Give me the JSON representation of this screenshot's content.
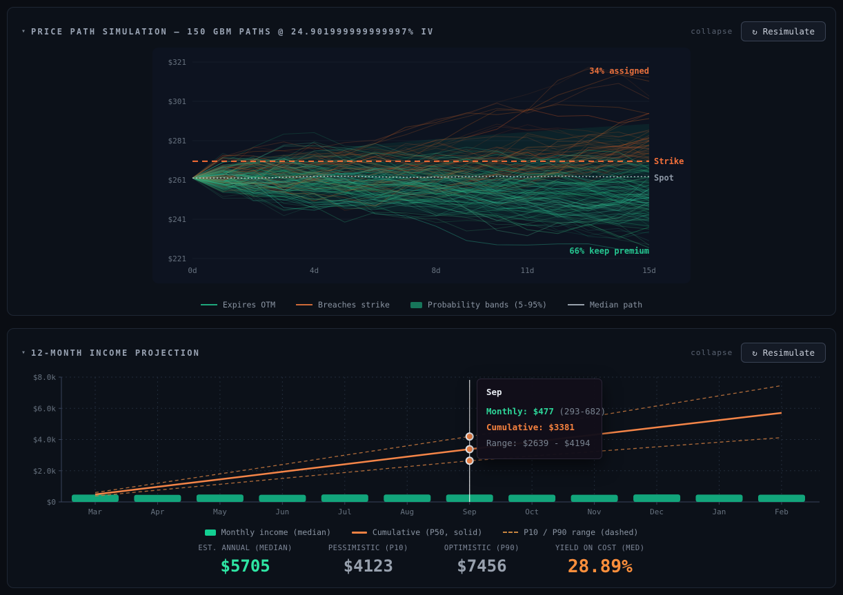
{
  "panels": {
    "simulation": {
      "caret": "▾",
      "title": "PRICE PATH SIMULATION — 150 GBM PATHS @ 24.901999999999997% IV",
      "collapse_label": "collapse",
      "resim_icon": "↻",
      "resimulate_label": "Resimulate"
    },
    "income": {
      "caret": "▾",
      "title": "12-MONTH INCOME PROJECTION",
      "collapse_label": "collapse",
      "resim_icon": "↻",
      "resimulate_label": "Resimulate"
    }
  },
  "legends": {
    "sim": [
      {
        "label": "Expires OTM"
      },
      {
        "label": "Breaches strike"
      },
      {
        "label": "Probability bands (5-95%)"
      },
      {
        "label": "Median path"
      }
    ],
    "income": [
      {
        "label": "Monthly income (median)"
      },
      {
        "label": "Cumulative (P50, solid)"
      },
      {
        "label": "P10 / P90 range (dashed)"
      }
    ]
  },
  "tooltip": {
    "month": "Sep",
    "monthly_label": "Monthly:",
    "monthly_value": "$477",
    "monthly_range": "(293-682)",
    "cumulative_label": "Cumulative:",
    "cumulative_value": "$3381",
    "range_label": "Range:",
    "range_value": "$2639 - $4194"
  },
  "stats": [
    {
      "label": "EST. ANNUAL (MEDIAN)",
      "value": "$5705"
    },
    {
      "label": "PESSIMISTIC (P10)",
      "value": "$4123"
    },
    {
      "label": "OPTIMISTIC (P90)",
      "value": "$7456"
    },
    {
      "label": "YIELD ON COST (MED)",
      "value": "28.89%"
    }
  ],
  "colors": {
    "green_bright": "#2ee6a4",
    "green_path": "#1ea87c",
    "orange_line": "#f58548",
    "orange_strike": "#f96e35",
    "orange_text": "#e8703c",
    "gray_median": "#c7ced8",
    "bar_green": "#12a57b"
  },
  "chart_data": [
    {
      "type": "line",
      "title": "Price path simulation",
      "n_paths": 150,
      "iv_pct": 24.901999999999997,
      "spot": 262,
      "strike": 270.5,
      "days": 15,
      "seed": 7,
      "band_z": 1.645,
      "ylim": [
        221,
        321
      ],
      "y_ticks": [
        321,
        301,
        281,
        261,
        241,
        221
      ],
      "x_ticks": [
        0,
        4,
        8,
        11,
        15
      ],
      "x_tick_suffix": "d",
      "annotations": {
        "assigned": "34% assigned",
        "keep": "66% keep premium",
        "strike_label": "Strike",
        "spot_label": "Spot"
      },
      "grid": "horizontal-only",
      "legend_position": "bottom"
    },
    {
      "type": "bar",
      "title": "12-month income projection",
      "categories": [
        "Mar",
        "Apr",
        "May",
        "Jun",
        "Jul",
        "Aug",
        "Sep",
        "Oct",
        "Nov",
        "Dec",
        "Jan",
        "Feb"
      ],
      "series": [
        {
          "name": "Monthly income (median)",
          "style": "bar",
          "values": [
            468,
            455,
            472,
            461,
            480,
            474,
            477,
            466,
            459,
            483,
            470,
            462
          ]
        },
        {
          "name": "Cumulative (P50, solid)",
          "style": "line-solid",
          "values": [
            483,
            966,
            1449,
            1932,
            2415,
            2898,
            3381,
            3846,
            4311,
            4776,
            5240,
            5705
          ]
        },
        {
          "name": "P10",
          "style": "line-dashed",
          "values": [
            377,
            754,
            1131,
            1508,
            1885,
            2262,
            2639,
            2936,
            3233,
            3530,
            3826,
            4123
          ]
        },
        {
          "name": "P90",
          "style": "line-dashed",
          "values": [
            599,
            1198,
            1797,
            2396,
            2995,
            3594,
            4194,
            4846,
            5499,
            6151,
            6804,
            7456
          ]
        }
      ],
      "ylim": [
        0,
        8000
      ],
      "y_ticks": [
        8000,
        6000,
        4000,
        2000,
        0
      ],
      "y_tick_labels": [
        "$8.0k",
        "$6.0k",
        "$4.0k",
        "$2.0k",
        "$0"
      ],
      "grid": "dotted-both",
      "legend_position": "bottom",
      "highlight": {
        "index": 6,
        "month": "Sep",
        "monthly": 477,
        "monthly_low": 293,
        "monthly_high": 682,
        "cumulative_p50": 3381,
        "cumulative_p10": 2639,
        "cumulative_p90": 4194
      }
    }
  ]
}
